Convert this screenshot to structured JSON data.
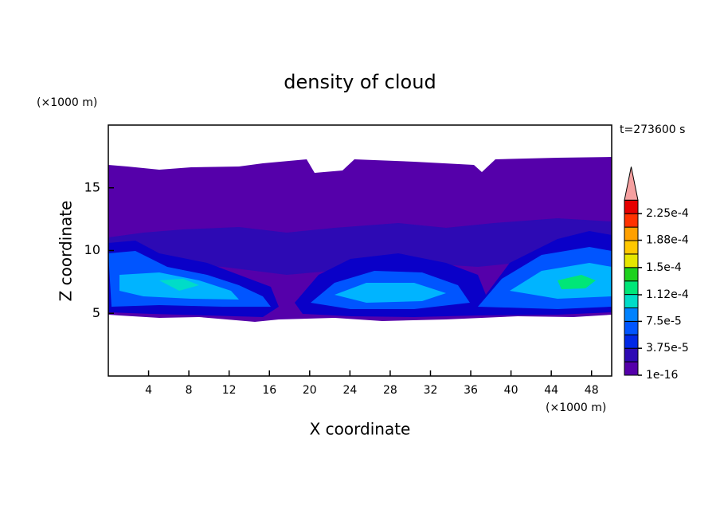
{
  "chart_data": {
    "type": "contour",
    "title": "density of cloud",
    "x_label": "X coordinate",
    "y_label": "Z coordinate",
    "x_unit": "(×1000 m)",
    "y_unit": "(×1000 m)",
    "annotation": "t=273600 s",
    "xlim": [
      0,
      50
    ],
    "ylim": [
      0,
      20
    ],
    "xticks": [
      4,
      8,
      12,
      16,
      20,
      24,
      28,
      32,
      36,
      40,
      44,
      48
    ],
    "yticks": [
      5,
      10,
      15
    ],
    "colorbar": {
      "ticks": [
        1e-16,
        {
          "value": 3.75e-05,
          "label": "3.75e-5"
        },
        {
          "value": 7.5e-05,
          "label": "7.5e-5"
        },
        {
          "value": 0.000112,
          "label": "1.12e-4"
        },
        {
          "value": 0.00015,
          "label": "1.5e-4"
        },
        {
          "value": 0.000188,
          "label": "1.88e-4"
        },
        {
          "value": 0.000225,
          "label": "2.25e-4"
        }
      ],
      "colors": [
        "#5500aa",
        "#2d0ab4",
        "#0a00c8",
        "#0028e6",
        "#0055ff",
        "#0082ff",
        "#00b4ff",
        "#00dcc8",
        "#00e678",
        "#1ed21e",
        "#8cdc00",
        "#e6e600",
        "#ffc800",
        "#ffa000",
        "#ff6e00",
        "#ff3200",
        "#e60000"
      ],
      "over_color": "#f5a0a0"
    }
  }
}
